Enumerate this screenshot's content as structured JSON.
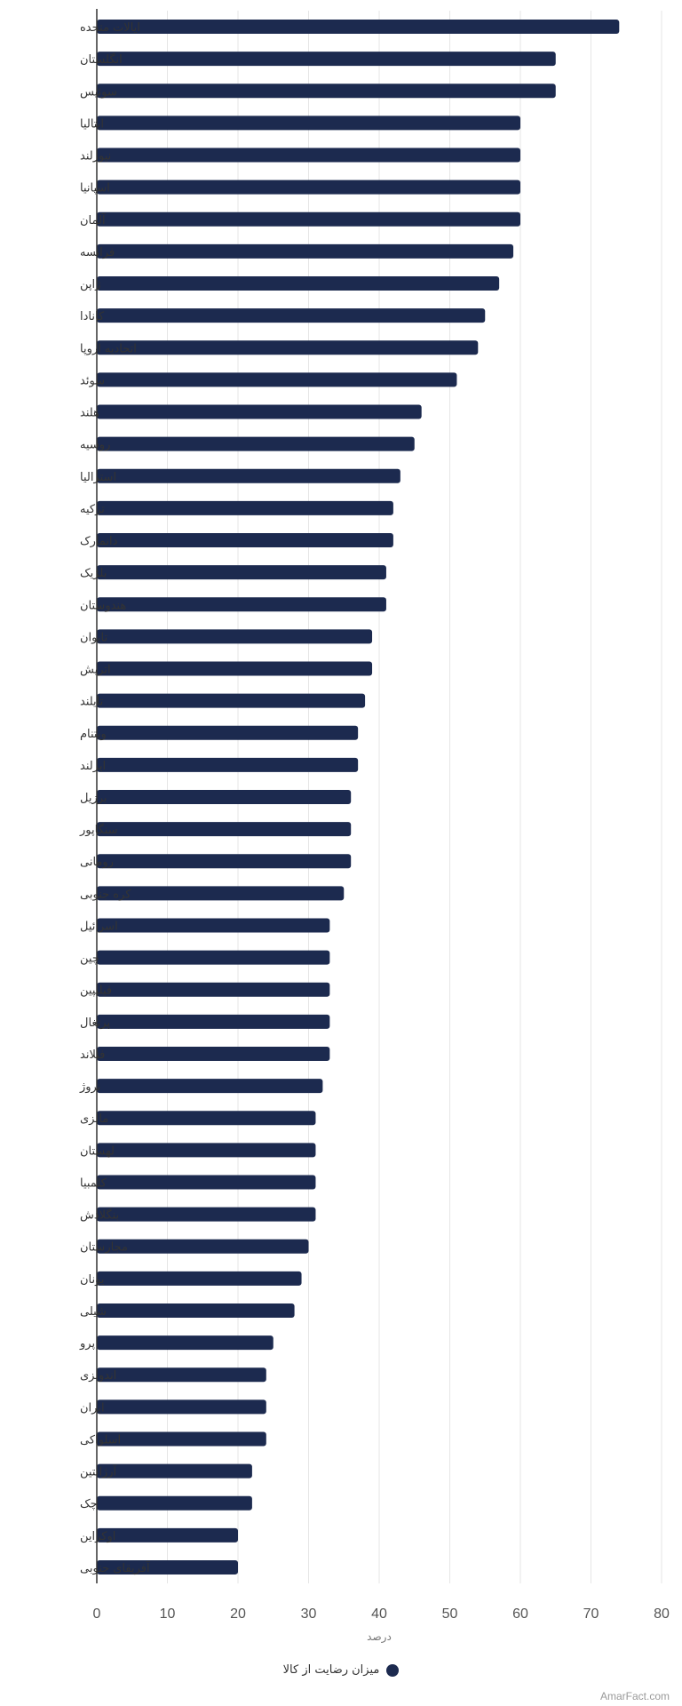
{
  "chart_data": {
    "type": "bar",
    "orientation": "horizontal",
    "categories": [
      "ایالات متحده",
      "انگلستان",
      "سوئیس",
      "ایتالیا",
      "نیوزلند",
      "اسپانیا",
      "آلمان",
      "فرانسه",
      "ژاپن",
      "کانادا",
      "اتحادیه اروپا",
      "سوئد",
      "هلند",
      "روسیه",
      "استرالیا",
      "ترکیه",
      "دانمارک",
      "بلژیک",
      "هندوستان",
      "تایوان",
      "اتریش",
      "تایلند",
      "ویتنام",
      "ایرلند",
      "برزیل",
      "سنگاپور",
      "رومانی",
      "کره جنوبی",
      "اسرائیل",
      "چین",
      "فیلیپین",
      "پرتغال",
      "فنلاند",
      "نروژ",
      "مالزی",
      "لهستان",
      "کلمبیا",
      "بنگلادش",
      "مجارستان",
      "یونان",
      "شیلی",
      "پرو",
      "اندونزی",
      "ایران",
      "اسلواکی",
      "آرژانتین",
      "چک",
      "اوکراین",
      "آفریقای جنوبی"
    ],
    "series": [
      {
        "name": "میزان رضایت از کالا",
        "color": "#1c2a4f",
        "values": [
          74,
          65,
          65,
          60,
          60,
          60,
          60,
          59,
          57,
          55,
          54,
          51,
          46,
          45,
          43,
          42,
          42,
          41,
          41,
          39,
          39,
          38,
          37,
          37,
          36,
          36,
          36,
          35,
          33,
          33,
          33,
          33,
          33,
          32,
          31,
          31,
          31,
          31,
          30,
          29,
          28,
          25,
          24,
          24,
          24,
          22,
          22,
          20,
          20
        ]
      }
    ],
    "xlabel": "درصد",
    "xlim": [
      0,
      80
    ],
    "xticks": [
      0,
      10,
      20,
      30,
      40,
      50,
      60,
      70,
      80
    ],
    "grid": true,
    "legend_position": "bottom-center"
  },
  "credit": "AmarFact.com"
}
